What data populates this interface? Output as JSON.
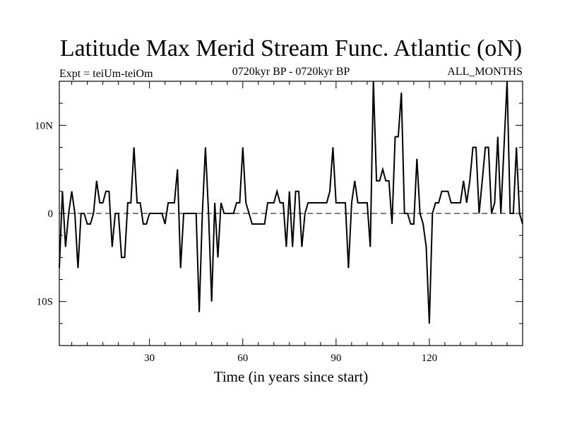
{
  "chart_data": {
    "type": "line",
    "title": "Latitude Max Merid Stream Func. Atlantic (oN)",
    "subtitle_left": "Expt = teiUm-teiOm",
    "subtitle_center": "0720kyr BP - 0720kyr BP",
    "subtitle_right": "ALL_MONTHS",
    "xlabel": "Time (in years since start)",
    "ylabel": "",
    "xlim": [
      1,
      150
    ],
    "ylim": [
      -15,
      15
    ],
    "x_ticks": [
      {
        "value": 30,
        "label": "30"
      },
      {
        "value": 60,
        "label": "60"
      },
      {
        "value": 90,
        "label": "90"
      },
      {
        "value": 120,
        "label": "120"
      }
    ],
    "y_ticks": [
      {
        "value": 10,
        "label": "10N"
      },
      {
        "value": 0,
        "label": "0"
      },
      {
        "value": -10,
        "label": "10S"
      }
    ],
    "zero_line": "dashed",
    "grid": false,
    "series": [
      {
        "color": "#000000",
        "x": [
          1,
          2,
          3,
          4,
          5,
          6,
          7,
          8,
          9,
          10,
          11,
          12,
          13,
          14,
          15,
          16,
          17,
          18,
          19,
          20,
          21,
          22,
          23,
          24,
          25,
          26,
          27,
          28,
          29,
          30,
          31,
          32,
          33,
          34,
          35,
          36,
          37,
          38,
          39,
          40,
          41,
          42,
          43,
          44,
          45,
          46,
          47,
          48,
          49,
          50,
          51,
          52,
          53,
          54,
          55,
          56,
          57,
          58,
          59,
          60,
          61,
          62,
          63,
          64,
          65,
          66,
          67,
          68,
          69,
          70,
          71,
          72,
          73,
          74,
          75,
          76,
          77,
          78,
          79,
          80,
          81,
          82,
          83,
          84,
          85,
          86,
          87,
          88,
          89,
          90,
          91,
          92,
          93,
          94,
          95,
          96,
          97,
          98,
          99,
          100,
          101,
          102,
          103,
          104,
          105,
          106,
          107,
          108,
          109,
          110,
          111,
          112,
          113,
          114,
          115,
          116,
          117,
          118,
          119,
          120,
          121,
          122,
          123,
          124,
          125,
          126,
          127,
          128,
          129,
          130,
          131,
          132,
          133,
          134,
          135,
          136,
          137,
          138,
          139,
          140,
          141,
          142,
          143,
          144,
          145,
          146,
          147,
          148,
          149,
          150
        ],
        "values": [
          -6.2,
          2.5,
          -3.8,
          0,
          2.5,
          0,
          -6.2,
          0,
          0,
          -1.2,
          -1.2,
          0,
          3.7,
          1.2,
          1.2,
          2.5,
          2.5,
          -3.8,
          0,
          0,
          -5.0,
          -5.0,
          1.2,
          1.2,
          7.5,
          1.2,
          1.2,
          -1.2,
          -1.2,
          0,
          0,
          0,
          0,
          0,
          -1.2,
          1.2,
          1.2,
          1.2,
          5.0,
          -6.2,
          0,
          0,
          0,
          0,
          0,
          -11.2,
          0,
          7.5,
          0,
          -10.0,
          1.2,
          -5.0,
          1.2,
          0,
          0,
          0,
          0,
          1.2,
          1.2,
          7.5,
          1.2,
          0,
          -1.2,
          -1.2,
          -1.2,
          -1.2,
          -1.2,
          1.2,
          1.2,
          1.2,
          2.5,
          1.2,
          1.2,
          -3.8,
          2.5,
          -3.8,
          2.5,
          2.5,
          -3.8,
          0,
          1.2,
          1.2,
          1.2,
          1.2,
          1.2,
          1.2,
          1.2,
          2.5,
          7.5,
          1.2,
          1.2,
          1.2,
          1.2,
          -6.2,
          1.2,
          3.7,
          1.2,
          1.2,
          1.2,
          1.2,
          -3.8,
          15.0,
          3.7,
          3.7,
          5.0,
          3.7,
          3.7,
          -1.2,
          8.7,
          8.7,
          13.7,
          0,
          0,
          -1.2,
          -1.2,
          6.2,
          0,
          -1.2,
          -3.8,
          -12.5,
          0,
          1.2,
          1.2,
          2.5,
          2.5,
          2.5,
          1.2,
          1.2,
          1.2,
          1.2,
          3.7,
          1.2,
          3.7,
          7.5,
          7.5,
          0,
          3.7,
          7.5,
          7.5,
          0,
          1.2,
          8.7,
          0,
          7.5,
          15.0,
          0,
          0,
          7.5,
          0,
          -1.2
        ]
      }
    ]
  }
}
